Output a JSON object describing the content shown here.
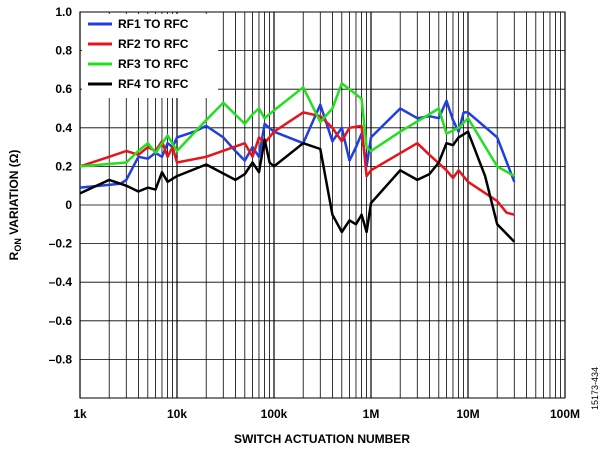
{
  "chart_data": {
    "type": "line",
    "log_x": true,
    "x_label": "SWITCH ACTUATION NUMBER",
    "y_label": {
      "main": "R",
      "sub": "ON",
      "rest": " VARIATION (Ω)"
    },
    "figure_id": "15173-434",
    "xlim": [
      1000,
      100000000
    ],
    "xticks": [
      {
        "value": 1000,
        "label": "1k"
      },
      {
        "value": 10000,
        "label": "10k"
      },
      {
        "value": 100000,
        "label": "100k"
      },
      {
        "value": 1000000,
        "label": "1M"
      },
      {
        "value": 10000000,
        "label": "10M"
      },
      {
        "value": 100000000,
        "label": "100M"
      }
    ],
    "xgrid_minor": [
      2000,
      3000,
      4000,
      5000,
      6000,
      7000,
      8000,
      9000,
      20000,
      30000,
      40000,
      50000,
      60000,
      70000,
      80000,
      90000,
      200000,
      300000,
      400000,
      500000,
      600000,
      700000,
      800000,
      900000,
      2000000,
      3000000,
      4000000,
      5000000,
      6000000,
      7000000,
      8000000,
      9000000,
      20000000,
      30000000,
      40000000,
      50000000,
      60000000,
      70000000,
      80000000,
      90000000
    ],
    "ylim": [
      -1,
      1
    ],
    "yticks": [
      {
        "value": -0.8,
        "label": "–0.8"
      },
      {
        "value": -0.6,
        "label": "–0.6"
      },
      {
        "value": -0.4,
        "label": "–0.4"
      },
      {
        "value": -0.2,
        "label": "–0.2"
      },
      0,
      0.2,
      0.4,
      0.6,
      0.8,
      {
        "value": 1,
        "label": "1.0"
      }
    ],
    "grid": true,
    "legend": "top-left",
    "series": [
      {
        "name": "RF1 TO RFC",
        "color": "#1f3fe0",
        "x": [
          1000,
          2600,
          3000,
          4000,
          5000,
          6000,
          7000,
          8000,
          9000,
          10000,
          15000,
          20000,
          30000,
          40000,
          50000,
          60000,
          70000,
          80000,
          100000,
          200000,
          300000,
          400000,
          500000,
          600000,
          700000,
          800000,
          900000,
          1000000,
          2000000,
          3000000,
          4000000,
          5000000,
          6000000,
          7000000,
          8000000,
          9000000,
          10000000,
          20000000,
          30000000
        ],
        "values": [
          0.09,
          0.11,
          0.13,
          0.25,
          0.24,
          0.27,
          0.25,
          0.32,
          0.3,
          0.35,
          0.38,
          0.41,
          0.35,
          0.28,
          0.23,
          0.3,
          0.25,
          0.42,
          0.38,
          0.32,
          0.52,
          0.33,
          0.4,
          0.23,
          0.3,
          0.37,
          0.2,
          0.35,
          0.5,
          0.45,
          0.46,
          0.45,
          0.54,
          0.44,
          0.38,
          0.48,
          0.48,
          0.35,
          0.12
        ]
      },
      {
        "name": "RF2 TO RFC",
        "color": "#e8141b",
        "x": [
          1000,
          2000,
          3000,
          4000,
          5000,
          6000,
          7000,
          8000,
          9000,
          10000,
          20000,
          50000,
          60000,
          70000,
          80000,
          100000,
          200000,
          300000,
          400000,
          500000,
          600000,
          800000,
          900000,
          1000000,
          3000000,
          4000000,
          6000000,
          7000000,
          8000000,
          10000000,
          20000000,
          25000000,
          30000000
        ],
        "values": [
          0.2,
          0.25,
          0.28,
          0.26,
          0.3,
          0.28,
          0.33,
          0.25,
          0.3,
          0.22,
          0.25,
          0.32,
          0.25,
          0.35,
          0.32,
          0.38,
          0.48,
          0.46,
          0.4,
          0.33,
          0.4,
          0.41,
          0.15,
          0.18,
          0.32,
          0.26,
          0.18,
          0.14,
          0.18,
          0.12,
          0.02,
          -0.04,
          -0.05
        ]
      },
      {
        "name": "RF3 TO RFC",
        "color": "#22e01e",
        "x": [
          1000,
          3000,
          4000,
          5000,
          6000,
          8000,
          10000,
          20000,
          30000,
          50000,
          60000,
          70000,
          80000,
          100000,
          200000,
          300000,
          400000,
          500000,
          600000,
          800000,
          900000,
          1000000,
          2000000,
          5000000,
          6000000,
          8000000,
          10000000,
          20000000,
          30000000
        ],
        "values": [
          0.2,
          0.22,
          0.28,
          0.32,
          0.27,
          0.36,
          0.28,
          0.44,
          0.53,
          0.42,
          0.47,
          0.5,
          0.45,
          0.49,
          0.61,
          0.43,
          0.5,
          0.63,
          0.6,
          0.55,
          0.3,
          0.28,
          0.38,
          0.5,
          0.37,
          0.4,
          0.45,
          0.2,
          0.15
        ]
      },
      {
        "name": "RF4 TO RFC",
        "color": "#000000",
        "x": [
          1000,
          2000,
          3000,
          4000,
          5000,
          6000,
          7000,
          8000,
          10000,
          20000,
          40000,
          50000,
          60000,
          70000,
          80000,
          90000,
          100000,
          200000,
          300000,
          400000,
          500000,
          600000,
          700000,
          800000,
          900000,
          1000000,
          2000000,
          3000000,
          4000000,
          5000000,
          6000000,
          7000000,
          8000000,
          10000000,
          15000000,
          20000000,
          30000000
        ],
        "values": [
          0.06,
          0.13,
          0.1,
          0.07,
          0.09,
          0.08,
          0.17,
          0.12,
          0.15,
          0.21,
          0.13,
          0.16,
          0.22,
          0.17,
          0.34,
          0.22,
          0.2,
          0.32,
          0.29,
          -0.05,
          -0.14,
          -0.08,
          -0.1,
          -0.05,
          -0.14,
          0.01,
          0.18,
          0.13,
          0.16,
          0.22,
          0.32,
          0.31,
          0.35,
          0.38,
          0.15,
          -0.1,
          -0.19
        ]
      }
    ]
  }
}
